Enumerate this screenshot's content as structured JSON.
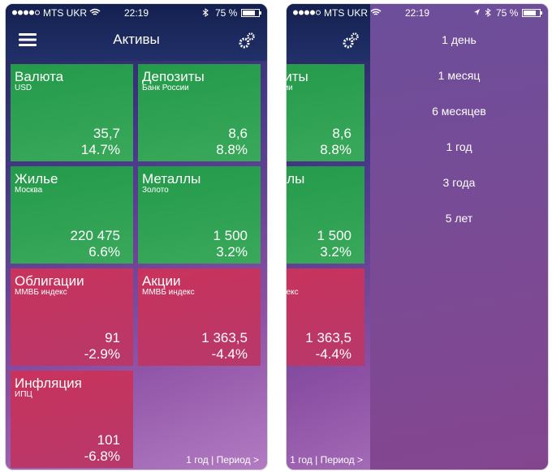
{
  "status": {
    "carrier": "MTS UKR",
    "time": "22:19",
    "battery": "75 %"
  },
  "header": {
    "title": "Активы"
  },
  "tiles": [
    {
      "name": "Валюта",
      "sub": "USD",
      "value": "35,7",
      "change": "14.7%"
    },
    {
      "name": "Депозиты",
      "sub": "Банк России",
      "value": "8,6",
      "change": "8.8%"
    },
    {
      "name": "Жилье",
      "sub": "Москва",
      "value": "220 475",
      "change": "6.6%"
    },
    {
      "name": "Металлы",
      "sub": "Золото",
      "value": "1 500",
      "change": "3.2%"
    },
    {
      "name": "Облигации",
      "sub": "ММВБ индекс",
      "value": "91",
      "change": "-2.9%"
    },
    {
      "name": "Акции",
      "sub": "ММВБ индекс",
      "value": "1 363,5",
      "change": "-4.4%"
    },
    {
      "name": "Инфляция",
      "sub": "ИПЦ",
      "value": "101",
      "change": "-6.8%"
    }
  ],
  "footer": "1 год | Период >",
  "menu": {
    "items": [
      "1 день",
      "1 месяц",
      "6 месяцев",
      "1 год",
      "3 года",
      "5 лет"
    ],
    "selected": 3
  }
}
